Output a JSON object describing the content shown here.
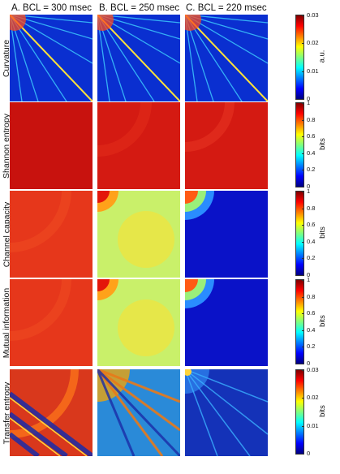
{
  "columns": [
    {
      "title": "A. BCL = 300 msec"
    },
    {
      "title": "B. BCL = 250 msec"
    },
    {
      "title": "C. BCL = 220 msec"
    }
  ],
  "rows": [
    {
      "label": "Curvature",
      "unit": "a.u.",
      "ticks": [
        "0.03",
        "0.02",
        "0.01",
        "0"
      ]
    },
    {
      "label": "Shannon entropy",
      "unit": "bits",
      "ticks": [
        "1",
        "0.8",
        "0.6",
        "0.4",
        "0.2",
        "0"
      ]
    },
    {
      "label": "Channel capacity",
      "unit": "bits",
      "ticks": [
        "1",
        "0.8",
        "0.6",
        "0.4",
        "0.2",
        "0"
      ]
    },
    {
      "label": "Mutual information",
      "unit": "bits",
      "ticks": [
        "1",
        "0.8",
        "0.6",
        "0.4",
        "0.2",
        "0"
      ]
    },
    {
      "label": "Transfer entropy",
      "unit": "bits",
      "ticks": [
        "0.03",
        "0.02",
        "0.01",
        "0"
      ]
    }
  ],
  "colormap": [
    "#00007f",
    "#0000ff",
    "#007fff",
    "#00ffff",
    "#7fff7f",
    "#ffff00",
    "#ff7f00",
    "#ff0000",
    "#7f0000"
  ]
}
